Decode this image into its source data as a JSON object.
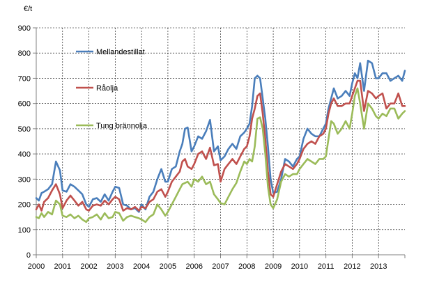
{
  "chart_data": {
    "type": "line",
    "title": "",
    "unit_label": "€/t",
    "xlabel": "",
    "ylabel": "",
    "ylim": [
      0,
      900
    ],
    "yticks": [
      "0",
      "100",
      "200",
      "300",
      "400",
      "500",
      "600",
      "700",
      "800",
      "900"
    ],
    "xlim": [
      2000,
      2014
    ],
    "xticks": [
      "2000",
      "2001",
      "2002",
      "2003",
      "2004",
      "2005",
      "2006",
      "2007",
      "2008",
      "2009",
      "2010",
      "2011",
      "2012",
      "2013"
    ],
    "grid": true,
    "legend_position": "inside-left",
    "series": [
      {
        "name": "Mellandestillat",
        "color": "#4a7ebb",
        "x": [
          2000.0,
          2000.1,
          2000.2,
          2000.3,
          2000.45,
          2000.6,
          2000.75,
          2000.9,
          2001.0,
          2001.15,
          2001.3,
          2001.45,
          2001.6,
          2001.75,
          2001.9,
          2002.0,
          2002.15,
          2002.3,
          2002.45,
          2002.6,
          2002.75,
          2002.9,
          2003.0,
          2003.15,
          2003.3,
          2003.45,
          2003.6,
          2003.75,
          2003.9,
          2004.0,
          2004.15,
          2004.3,
          2004.45,
          2004.6,
          2004.75,
          2004.9,
          2005.0,
          2005.15,
          2005.3,
          2005.45,
          2005.55,
          2005.65,
          2005.75,
          2005.9,
          2006.0,
          2006.15,
          2006.3,
          2006.45,
          2006.6,
          2006.75,
          2006.9,
          2007.0,
          2007.15,
          2007.3,
          2007.45,
          2007.6,
          2007.75,
          2007.9,
          2008.0,
          2008.1,
          2008.2,
          2008.3,
          2008.4,
          2008.5,
          2008.6,
          2008.7,
          2008.8,
          2008.9,
          2009.0,
          2009.15,
          2009.3,
          2009.45,
          2009.6,
          2009.75,
          2009.9,
          2010.0,
          2010.15,
          2010.3,
          2010.45,
          2010.6,
          2010.75,
          2010.9,
          2011.0,
          2011.1,
          2011.2,
          2011.3,
          2011.45,
          2011.6,
          2011.75,
          2011.9,
          2012.0,
          2012.1,
          2012.2,
          2012.3,
          2012.45,
          2012.6,
          2012.75,
          2012.9,
          2013.0,
          2013.15,
          2013.3,
          2013.45,
          2013.6,
          2013.75,
          2013.9,
          2014.0
        ],
        "values": [
          225,
          215,
          245,
          250,
          260,
          280,
          370,
          335,
          255,
          250,
          280,
          270,
          255,
          240,
          200,
          190,
          220,
          225,
          210,
          240,
          215,
          250,
          270,
          265,
          200,
          195,
          180,
          185,
          170,
          200,
          180,
          230,
          250,
          300,
          340,
          290,
          290,
          340,
          350,
          410,
          440,
          500,
          505,
          410,
          430,
          470,
          460,
          490,
          535,
          410,
          430,
          375,
          390,
          420,
          440,
          420,
          470,
          485,
          500,
          520,
          590,
          700,
          710,
          700,
          620,
          540,
          430,
          300,
          245,
          250,
          300,
          380,
          370,
          350,
          380,
          390,
          460,
          500,
          480,
          470,
          470,
          500,
          520,
          580,
          620,
          660,
          620,
          630,
          650,
          630,
          680,
          720,
          700,
          760,
          650,
          770,
          760,
          700,
          700,
          720,
          720,
          690,
          700,
          710,
          690,
          730
        ]
      },
      {
        "name": "Råolja",
        "color": "#c0504d",
        "x": [
          2000.0,
          2000.1,
          2000.2,
          2000.3,
          2000.45,
          2000.6,
          2000.75,
          2000.9,
          2001.0,
          2001.15,
          2001.3,
          2001.45,
          2001.6,
          2001.75,
          2001.9,
          2002.0,
          2002.15,
          2002.3,
          2002.45,
          2002.6,
          2002.75,
          2002.9,
          2003.0,
          2003.15,
          2003.3,
          2003.45,
          2003.6,
          2003.75,
          2003.9,
          2004.0,
          2004.15,
          2004.3,
          2004.45,
          2004.6,
          2004.75,
          2004.9,
          2005.0,
          2005.15,
          2005.3,
          2005.45,
          2005.55,
          2005.65,
          2005.75,
          2005.9,
          2006.0,
          2006.15,
          2006.3,
          2006.45,
          2006.6,
          2006.75,
          2006.9,
          2007.0,
          2007.15,
          2007.3,
          2007.45,
          2007.6,
          2007.75,
          2007.9,
          2008.0,
          2008.1,
          2008.2,
          2008.3,
          2008.4,
          2008.5,
          2008.6,
          2008.7,
          2008.8,
          2008.9,
          2009.0,
          2009.15,
          2009.3,
          2009.45,
          2009.6,
          2009.75,
          2009.9,
          2010.0,
          2010.15,
          2010.3,
          2010.45,
          2010.6,
          2010.75,
          2010.9,
          2011.0,
          2011.1,
          2011.2,
          2011.3,
          2011.45,
          2011.6,
          2011.75,
          2011.9,
          2012.0,
          2012.1,
          2012.2,
          2012.3,
          2012.45,
          2012.6,
          2012.75,
          2012.9,
          2013.0,
          2013.15,
          2013.3,
          2013.45,
          2013.6,
          2013.75,
          2013.9,
          2014.0
        ],
        "values": [
          180,
          200,
          175,
          210,
          225,
          255,
          280,
          240,
          185,
          215,
          235,
          215,
          195,
          210,
          180,
          175,
          195,
          200,
          195,
          215,
          200,
          220,
          230,
          220,
          175,
          185,
          180,
          190,
          175,
          190,
          185,
          210,
          220,
          250,
          260,
          230,
          250,
          290,
          310,
          330,
          370,
          380,
          350,
          340,
          360,
          400,
          410,
          380,
          425,
          355,
          360,
          290,
          340,
          360,
          380,
          360,
          390,
          420,
          430,
          470,
          540,
          580,
          630,
          640,
          560,
          460,
          330,
          240,
          230,
          280,
          330,
          360,
          350,
          340,
          360,
          380,
          420,
          440,
          450,
          440,
          470,
          480,
          500,
          560,
          600,
          620,
          590,
          590,
          600,
          600,
          630,
          660,
          690,
          690,
          570,
          650,
          640,
          620,
          630,
          640,
          580,
          600,
          600,
          640,
          590,
          590
        ]
      },
      {
        "name": "Tung brännolja",
        "color": "#9bbb59",
        "x": [
          2000.0,
          2000.1,
          2000.2,
          2000.3,
          2000.45,
          2000.6,
          2000.75,
          2000.9,
          2001.0,
          2001.15,
          2001.3,
          2001.45,
          2001.6,
          2001.75,
          2001.9,
          2002.0,
          2002.15,
          2002.3,
          2002.45,
          2002.6,
          2002.75,
          2002.9,
          2003.0,
          2003.15,
          2003.3,
          2003.45,
          2003.6,
          2003.75,
          2003.9,
          2004.0,
          2004.15,
          2004.3,
          2004.45,
          2004.6,
          2004.75,
          2004.9,
          2005.0,
          2005.15,
          2005.3,
          2005.45,
          2005.55,
          2005.65,
          2005.75,
          2005.9,
          2006.0,
          2006.15,
          2006.3,
          2006.45,
          2006.6,
          2006.75,
          2006.9,
          2007.0,
          2007.15,
          2007.3,
          2007.45,
          2007.6,
          2007.75,
          2007.9,
          2008.0,
          2008.1,
          2008.2,
          2008.3,
          2008.4,
          2008.5,
          2008.6,
          2008.7,
          2008.8,
          2008.9,
          2009.0,
          2009.15,
          2009.3,
          2009.45,
          2009.6,
          2009.75,
          2009.9,
          2010.0,
          2010.15,
          2010.3,
          2010.45,
          2010.6,
          2010.75,
          2010.9,
          2011.0,
          2011.1,
          2011.2,
          2011.3,
          2011.45,
          2011.6,
          2011.75,
          2011.9,
          2012.0,
          2012.1,
          2012.2,
          2012.3,
          2012.45,
          2012.6,
          2012.75,
          2012.9,
          2013.0,
          2013.15,
          2013.3,
          2013.45,
          2013.6,
          2013.75,
          2013.9,
          2014.0
        ],
        "values": [
          150,
          145,
          165,
          150,
          170,
          160,
          215,
          200,
          155,
          150,
          160,
          145,
          155,
          140,
          130,
          145,
          150,
          160,
          140,
          165,
          145,
          150,
          170,
          165,
          135,
          150,
          155,
          150,
          145,
          140,
          130,
          150,
          160,
          200,
          180,
          155,
          170,
          200,
          230,
          260,
          280,
          285,
          290,
          270,
          300,
          290,
          310,
          280,
          290,
          240,
          220,
          205,
          200,
          230,
          260,
          285,
          330,
          370,
          360,
          380,
          370,
          430,
          540,
          545,
          500,
          400,
          270,
          200,
          185,
          220,
          290,
          320,
          310,
          320,
          320,
          340,
          360,
          380,
          370,
          360,
          380,
          380,
          390,
          460,
          530,
          520,
          480,
          500,
          530,
          500,
          560,
          630,
          660,
          600,
          500,
          600,
          580,
          550,
          540,
          560,
          550,
          580,
          580,
          540,
          560,
          570
        ]
      }
    ]
  }
}
